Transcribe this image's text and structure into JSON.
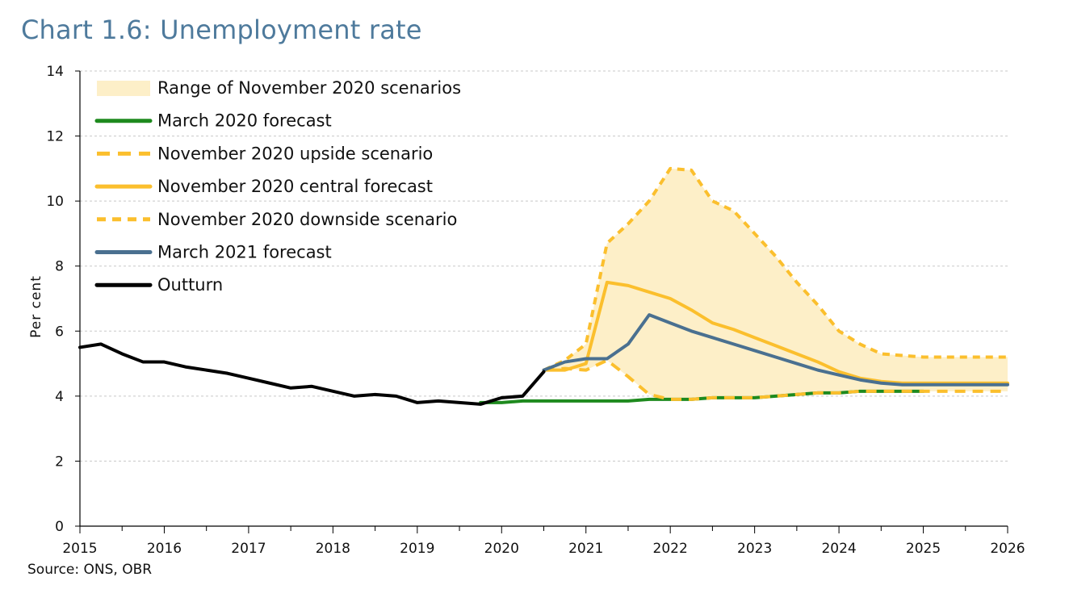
{
  "title": "Chart 1.6: Unemployment rate",
  "source": "Source: ONS, OBR",
  "colors": {
    "title": "#4e7a9c",
    "range_fill": "#fdefc8",
    "march2020": "#1e8a1e",
    "november": "#fbbf2d",
    "march2021": "#4a7090",
    "outturn": "#000000",
    "grid": "#c8c8c8"
  },
  "chart_data": {
    "type": "line",
    "title": "Chart 1.6: Unemployment rate",
    "xlabel": "",
    "ylabel": "Per cent",
    "xlim": [
      2015,
      2026
    ],
    "ylim": [
      0,
      14
    ],
    "y_ticks": [
      0,
      2,
      4,
      6,
      8,
      10,
      12,
      14
    ],
    "x_ticks": [
      2015,
      2016,
      2017,
      2018,
      2019,
      2020,
      2021,
      2022,
      2023,
      2024,
      2025,
      2026
    ],
    "grid": true,
    "legend_position": "top-left",
    "range": {
      "name": "Range of November 2020 scenarios",
      "x": [
        2020.5,
        2020.75,
        2021.0,
        2021.25,
        2021.5,
        2021.75,
        2022.0,
        2022.25,
        2022.5,
        2022.75,
        2023.0,
        2023.25,
        2023.5,
        2023.75,
        2024.0,
        2024.25,
        2024.5,
        2024.75,
        2025.0,
        2025.25,
        2025.5,
        2025.75,
        2026.0
      ],
      "lower": [
        4.8,
        4.85,
        4.8,
        5.1,
        4.6,
        4.05,
        3.9,
        3.9,
        3.95,
        3.95,
        3.95,
        4.0,
        4.05,
        4.1,
        4.1,
        4.15,
        4.15,
        4.15,
        4.15,
        4.15,
        4.15,
        4.15,
        4.15
      ],
      "upper": [
        4.8,
        5.1,
        5.6,
        8.7,
        9.3,
        10.0,
        11.0,
        10.95,
        10.0,
        9.7,
        9.0,
        8.3,
        7.5,
        6.8,
        6.0,
        5.6,
        5.3,
        5.25,
        5.2,
        5.2,
        5.2,
        5.2,
        5.2
      ]
    },
    "series": [
      {
        "name": "March 2020 forecast",
        "style": "solid",
        "x": [
          2019.75,
          2020.0,
          2020.25,
          2020.5,
          2020.75,
          2021.0,
          2021.25,
          2021.5,
          2021.75,
          2022.0,
          2022.25,
          2022.5,
          2022.75,
          2023.0,
          2023.25,
          2023.5,
          2023.75,
          2024.0,
          2024.25,
          2024.5,
          2024.75,
          2025.0
        ],
        "values": [
          3.8,
          3.8,
          3.85,
          3.85,
          3.85,
          3.85,
          3.85,
          3.85,
          3.9,
          3.9,
          3.9,
          3.95,
          3.95,
          3.95,
          4.0,
          4.05,
          4.1,
          4.1,
          4.15,
          4.15,
          4.15,
          4.15
        ]
      },
      {
        "name": "November 2020 upside scenario",
        "style": "dash",
        "x": [
          2020.5,
          2020.75,
          2021.0,
          2021.25,
          2021.5,
          2021.75,
          2022.0,
          2022.25,
          2022.5,
          2022.75,
          2023.0,
          2023.25,
          2023.5,
          2023.75,
          2024.0,
          2024.25,
          2024.5,
          2024.75,
          2025.0,
          2025.25,
          2025.5,
          2025.75,
          2026.0
        ],
        "values": [
          4.8,
          4.85,
          4.8,
          5.1,
          4.6,
          4.05,
          3.9,
          3.9,
          3.95,
          3.95,
          3.95,
          4.0,
          4.05,
          4.1,
          4.1,
          4.15,
          4.15,
          4.15,
          4.15,
          4.15,
          4.15,
          4.15,
          4.15
        ]
      },
      {
        "name": "November 2020 central forecast",
        "style": "solid",
        "x": [
          2020.5,
          2020.75,
          2021.0,
          2021.25,
          2021.5,
          2021.75,
          2022.0,
          2022.25,
          2022.5,
          2022.75,
          2023.0,
          2023.25,
          2023.5,
          2023.75,
          2024.0,
          2024.25,
          2024.5,
          2024.75,
          2025.0,
          2025.25,
          2025.5,
          2025.75,
          2026.0
        ],
        "values": [
          4.8,
          4.8,
          5.0,
          7.5,
          7.4,
          7.2,
          7.0,
          6.65,
          6.25,
          6.05,
          5.8,
          5.55,
          5.3,
          5.05,
          4.75,
          4.55,
          4.45,
          4.4,
          4.4,
          4.4,
          4.4,
          4.4,
          4.4
        ]
      },
      {
        "name": "November 2020 downside scenario",
        "style": "dash",
        "x": [
          2020.5,
          2020.75,
          2021.0,
          2021.25,
          2021.5,
          2021.75,
          2022.0,
          2022.25,
          2022.5,
          2022.75,
          2023.0,
          2023.25,
          2023.5,
          2023.75,
          2024.0,
          2024.25,
          2024.5,
          2024.75,
          2025.0,
          2025.25,
          2025.5,
          2025.75,
          2026.0
        ],
        "values": [
          4.8,
          5.1,
          5.6,
          8.7,
          9.3,
          10.0,
          11.0,
          10.95,
          10.0,
          9.7,
          9.0,
          8.3,
          7.5,
          6.8,
          6.0,
          5.6,
          5.3,
          5.25,
          5.2,
          5.2,
          5.2,
          5.2,
          5.2
        ]
      },
      {
        "name": "March 2021 forecast",
        "style": "solid",
        "x": [
          2020.5,
          2020.75,
          2021.0,
          2021.25,
          2021.5,
          2021.75,
          2022.0,
          2022.25,
          2022.5,
          2022.75,
          2023.0,
          2023.25,
          2023.5,
          2023.75,
          2024.0,
          2024.25,
          2024.5,
          2024.75,
          2025.0,
          2025.25,
          2025.5,
          2025.75,
          2026.0
        ],
        "values": [
          4.8,
          5.05,
          5.15,
          5.15,
          5.6,
          6.5,
          6.25,
          6.0,
          5.8,
          5.6,
          5.4,
          5.2,
          5.0,
          4.8,
          4.65,
          4.5,
          4.4,
          4.35,
          4.35,
          4.35,
          4.35,
          4.35,
          4.35
        ]
      },
      {
        "name": "Outturn",
        "style": "solid",
        "x": [
          2015.0,
          2015.25,
          2015.5,
          2015.75,
          2016.0,
          2016.25,
          2016.5,
          2016.75,
          2017.0,
          2017.25,
          2017.5,
          2017.75,
          2018.0,
          2018.25,
          2018.5,
          2018.75,
          2019.0,
          2019.25,
          2019.5,
          2019.75,
          2020.0,
          2020.25,
          2020.5
        ],
        "values": [
          5.5,
          5.6,
          5.3,
          5.05,
          5.05,
          4.9,
          4.8,
          4.7,
          4.55,
          4.4,
          4.25,
          4.3,
          4.15,
          4.0,
          4.05,
          4.0,
          3.8,
          3.85,
          3.8,
          3.75,
          3.95,
          4.0,
          4.75
        ]
      }
    ]
  }
}
